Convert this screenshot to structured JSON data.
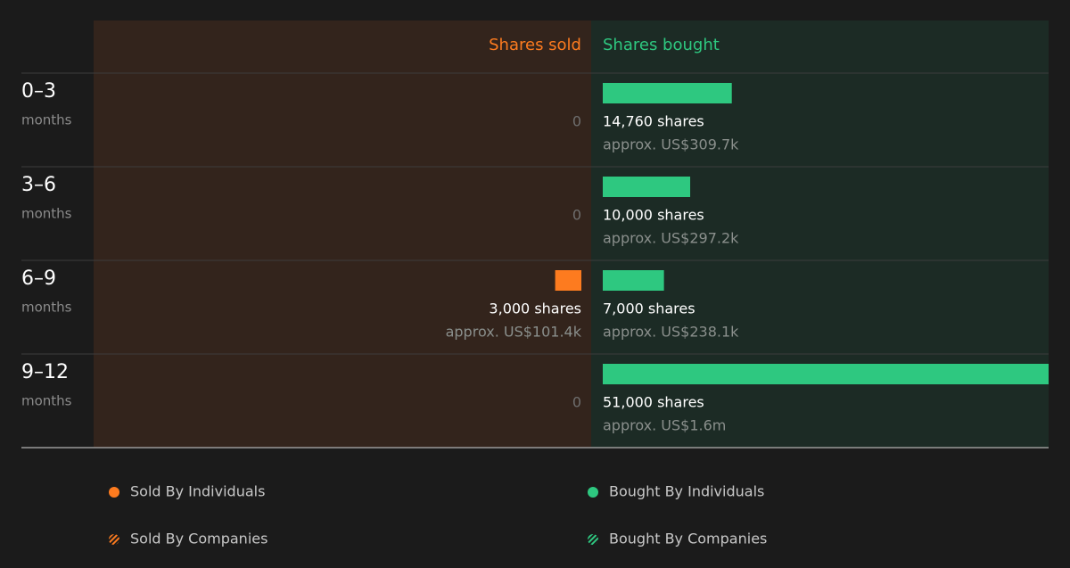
{
  "chart_data": {
    "type": "bar",
    "categories": [
      "0–3",
      "3–6",
      "6–9",
      "9–12"
    ],
    "category_sublabels": [
      "months",
      "months",
      "months",
      "months"
    ],
    "series": [
      {
        "name": "Shares sold",
        "color": "#fd7b1f",
        "side": "left",
        "values": [
          0,
          0,
          3000,
          0
        ],
        "value_labels": [
          "0",
          "0",
          "3,000 shares",
          "0"
        ],
        "approx_values": [
          null,
          null,
          101400,
          null
        ],
        "approx_labels": [
          null,
          null,
          "approx. US$101.4k",
          null
        ]
      },
      {
        "name": "Shares bought",
        "color": "#2ec880",
        "side": "right",
        "values": [
          14760,
          10000,
          7000,
          51000
        ],
        "value_labels": [
          "14,760 shares",
          "10,000 shares",
          "7,000 shares",
          "51,000 shares"
        ],
        "approx_values": [
          309700,
          297200,
          238100,
          1600000
        ],
        "approx_labels": [
          "approx. US$309.7k",
          "approx. US$297.2k",
          "approx. US$238.1k",
          "approx. US$1.6m"
        ]
      }
    ],
    "legend": [
      {
        "label": "Sold By Individuals",
        "color": "#fd7b1f",
        "hatched": false
      },
      {
        "label": "Bought By Individuals",
        "color": "#2ec880",
        "hatched": false
      },
      {
        "label": "Sold By Companies",
        "color": "#fd7b1f",
        "hatched": true
      },
      {
        "label": "Bought By Companies",
        "color": "#2ec880",
        "hatched": true
      }
    ]
  }
}
